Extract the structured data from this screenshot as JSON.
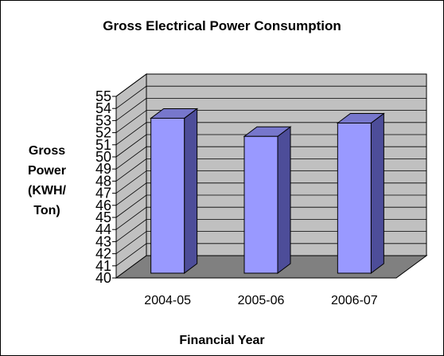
{
  "chart_data": {
    "type": "bar",
    "title": "Gross Electrical Power Consumption",
    "ylabel_lines": [
      "Gross",
      "Power",
      "(KWH/",
      "Ton)"
    ],
    "xlabel": "Financial Year",
    "categories": [
      "2004-05",
      "2005-06",
      "2006-07"
    ],
    "values": [
      52.8,
      51.3,
      52.4
    ],
    "ylim": [
      40,
      55
    ],
    "yticks": [
      40,
      41,
      42,
      43,
      44,
      45,
      46,
      47,
      48,
      49,
      50,
      51,
      52,
      53,
      54,
      55
    ],
    "grid": true,
    "three_d": true,
    "legend": "none",
    "colors": {
      "bar_front": "#9999ff",
      "bar_side": "#4d4d99",
      "bar_top": "#7777cc",
      "wall": "#c0c0c0",
      "floor": "#808080",
      "grid": "#000000"
    }
  }
}
